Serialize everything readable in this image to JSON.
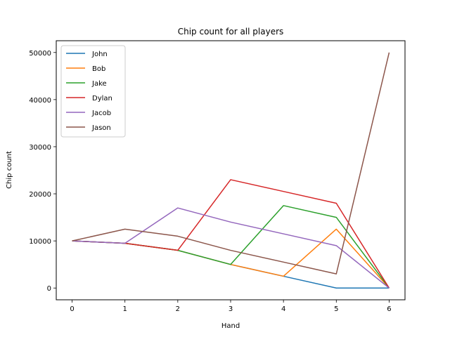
{
  "chart_data": {
    "type": "line",
    "title": "Chip count for all players",
    "xlabel": "Hand",
    "ylabel": "Chip count",
    "x": [
      0,
      1,
      2,
      3,
      4,
      5,
      6
    ],
    "xlim": [
      -0.3,
      6.3
    ],
    "ylim": [
      -2500,
      52500
    ],
    "xticks": [
      "0",
      "1",
      "2",
      "3",
      "4",
      "5",
      "6"
    ],
    "yticks": [
      0,
      10000,
      20000,
      30000,
      40000,
      50000
    ],
    "ytick_labels": [
      "0",
      "10000",
      "20000",
      "30000",
      "40000",
      "50000"
    ],
    "grid": false,
    "legend_position": "upper-left",
    "series": [
      {
        "name": "John",
        "color": "#1f77b4",
        "values": [
          10000,
          9500,
          8000,
          5000,
          2500,
          0,
          0
        ]
      },
      {
        "name": "Bob",
        "color": "#ff7f0e",
        "values": [
          10000,
          9500,
          8000,
          5000,
          2500,
          12500,
          0
        ]
      },
      {
        "name": "Jake",
        "color": "#2ca02c",
        "values": [
          10000,
          9500,
          8000,
          5000,
          17500,
          15000,
          0
        ]
      },
      {
        "name": "Dylan",
        "color": "#d62728",
        "values": [
          10000,
          9500,
          8000,
          23000,
          20500,
          18000,
          0
        ]
      },
      {
        "name": "Jacob",
        "color": "#9467bd",
        "values": [
          10000,
          9500,
          17000,
          14000,
          11500,
          9000,
          0
        ]
      },
      {
        "name": "Jason",
        "color": "#8c564b",
        "values": [
          10000,
          12500,
          11000,
          8000,
          5500,
          3000,
          50000
        ]
      }
    ]
  }
}
